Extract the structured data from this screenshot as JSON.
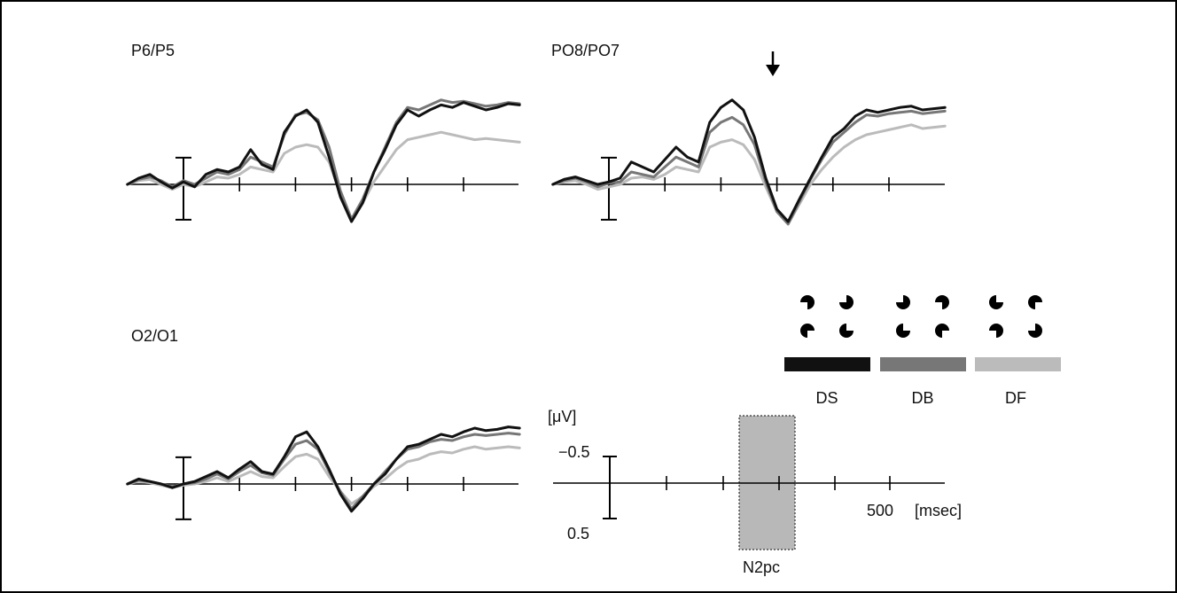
{
  "chart_data": {
    "type": "line",
    "x_unit_label": "[msec]",
    "x_tick_label": "500",
    "y_unit_label": "[μV]",
    "y_scale_labels": [
      "−0.5",
      "0.5"
    ],
    "y_inverted": true,
    "window_label": "N2pc",
    "window_range_ms": [
      200,
      300
    ],
    "x_ticks_ms": [
      0,
      100,
      200,
      300,
      400,
      500
    ],
    "series_colors": {
      "DS": "#111111",
      "DB": "#777777",
      "DF": "#bbbbbb"
    },
    "legend": [
      {
        "name": "DS",
        "color": "#111111",
        "inducer_rotations": [
          90,
          180,
          0,
          270
        ]
      },
      {
        "name": "DB",
        "color": "#777777",
        "inducer_rotations": [
          180,
          90,
          270,
          0
        ]
      },
      {
        "name": "DF",
        "color": "#bbbbbb",
        "inducer_rotations": [
          270,
          0,
          90,
          180
        ]
      }
    ],
    "panels": [
      {
        "label": "P6/P5",
        "x_ms": [
          -100,
          -80,
          -60,
          -40,
          -20,
          0,
          20,
          40,
          60,
          80,
          100,
          120,
          140,
          160,
          180,
          200,
          220,
          240,
          260,
          280,
          300,
          320,
          340,
          360,
          380,
          400,
          420,
          440,
          460,
          480,
          500,
          520,
          540,
          560,
          580,
          600
        ],
        "series": [
          {
            "name": "DS",
            "values": [
              0.0,
              0.05,
              0.08,
              0.02,
              -0.03,
              0.02,
              -0.02,
              0.08,
              0.12,
              0.1,
              0.14,
              0.28,
              0.16,
              0.12,
              0.42,
              0.55,
              0.6,
              0.5,
              0.22,
              -0.1,
              -0.3,
              -0.15,
              0.1,
              0.28,
              0.48,
              0.6,
              0.55,
              0.6,
              0.64,
              0.62,
              0.66,
              0.63,
              0.6,
              0.62,
              0.65,
              0.64
            ]
          },
          {
            "name": "DB",
            "values": [
              0.0,
              0.04,
              0.06,
              0.03,
              -0.02,
              0.03,
              0.0,
              0.05,
              0.1,
              0.08,
              0.12,
              0.22,
              0.18,
              0.14,
              0.4,
              0.56,
              0.58,
              0.52,
              0.3,
              -0.05,
              -0.28,
              -0.12,
              0.1,
              0.3,
              0.5,
              0.62,
              0.6,
              0.64,
              0.68,
              0.66,
              0.67,
              0.65,
              0.63,
              0.64,
              0.66,
              0.65
            ]
          },
          {
            "name": "DF",
            "values": [
              0.0,
              0.03,
              0.04,
              0.0,
              -0.04,
              0.0,
              -0.02,
              0.02,
              0.06,
              0.05,
              0.08,
              0.14,
              0.12,
              0.1,
              0.25,
              0.3,
              0.32,
              0.3,
              0.18,
              -0.08,
              -0.28,
              -0.15,
              0.02,
              0.15,
              0.28,
              0.36,
              0.38,
              0.4,
              0.42,
              0.4,
              0.38,
              0.36,
              0.37,
              0.36,
              0.35,
              0.34
            ]
          }
        ]
      },
      {
        "label": "PO8/PO7",
        "arrow_at_ms": 220,
        "x_ms": [
          -100,
          -80,
          -60,
          -40,
          -20,
          0,
          20,
          40,
          60,
          80,
          100,
          120,
          140,
          160,
          180,
          200,
          220,
          240,
          260,
          280,
          300,
          320,
          340,
          360,
          380,
          400,
          420,
          440,
          460,
          480,
          500,
          520,
          540,
          560,
          580,
          600
        ],
        "series": [
          {
            "name": "DS",
            "values": [
              0.0,
              0.04,
              0.06,
              0.03,
              0.0,
              0.02,
              0.05,
              0.18,
              0.14,
              0.1,
              0.2,
              0.3,
              0.22,
              0.18,
              0.5,
              0.62,
              0.68,
              0.6,
              0.38,
              0.05,
              -0.2,
              -0.3,
              -0.12,
              0.05,
              0.22,
              0.38,
              0.45,
              0.55,
              0.6,
              0.58,
              0.6,
              0.62,
              0.63,
              0.6,
              0.61,
              0.62
            ]
          },
          {
            "name": "DB",
            "values": [
              0.0,
              0.03,
              0.05,
              0.02,
              -0.02,
              0.01,
              0.02,
              0.1,
              0.08,
              0.06,
              0.14,
              0.22,
              0.18,
              0.14,
              0.42,
              0.5,
              0.54,
              0.48,
              0.32,
              0.02,
              -0.22,
              -0.32,
              -0.14,
              0.04,
              0.2,
              0.34,
              0.42,
              0.5,
              0.56,
              0.55,
              0.57,
              0.58,
              0.59,
              0.57,
              0.58,
              0.59
            ]
          },
          {
            "name": "DF",
            "values": [
              0.0,
              0.02,
              0.03,
              0.0,
              -0.04,
              -0.02,
              0.0,
              0.05,
              0.06,
              0.04,
              0.08,
              0.14,
              0.12,
              0.1,
              0.3,
              0.34,
              0.36,
              0.32,
              0.2,
              -0.02,
              -0.22,
              -0.32,
              -0.16,
              0.0,
              0.12,
              0.22,
              0.3,
              0.36,
              0.4,
              0.42,
              0.44,
              0.46,
              0.48,
              0.45,
              0.46,
              0.47
            ]
          }
        ]
      },
      {
        "label": "O2/O1",
        "x_ms": [
          -100,
          -80,
          -60,
          -40,
          -20,
          0,
          20,
          40,
          60,
          80,
          100,
          120,
          140,
          160,
          180,
          200,
          220,
          240,
          260,
          280,
          300,
          320,
          340,
          360,
          380,
          400,
          420,
          440,
          460,
          480,
          500,
          520,
          540,
          560,
          580,
          600
        ],
        "series": [
          {
            "name": "DS",
            "values": [
              0.0,
              0.04,
              0.02,
              0.0,
              -0.03,
              0.0,
              0.02,
              0.06,
              0.1,
              0.05,
              0.12,
              0.18,
              0.1,
              0.08,
              0.22,
              0.38,
              0.42,
              0.3,
              0.12,
              -0.08,
              -0.22,
              -0.12,
              0.0,
              0.08,
              0.2,
              0.3,
              0.32,
              0.36,
              0.4,
              0.38,
              0.42,
              0.45,
              0.43,
              0.44,
              0.46,
              0.45
            ]
          },
          {
            "name": "DB",
            "values": [
              0.0,
              0.03,
              0.02,
              0.0,
              -0.02,
              0.0,
              0.01,
              0.04,
              0.08,
              0.04,
              0.1,
              0.15,
              0.09,
              0.07,
              0.2,
              0.32,
              0.35,
              0.28,
              0.1,
              -0.06,
              -0.2,
              -0.1,
              0.0,
              0.1,
              0.2,
              0.28,
              0.3,
              0.34,
              0.36,
              0.35,
              0.38,
              0.4,
              0.39,
              0.4,
              0.41,
              0.4
            ]
          },
          {
            "name": "DF",
            "values": [
              0.0,
              0.02,
              0.01,
              -0.01,
              -0.03,
              -0.01,
              0.0,
              0.02,
              0.05,
              0.02,
              0.06,
              0.1,
              0.06,
              0.05,
              0.14,
              0.22,
              0.24,
              0.2,
              0.06,
              -0.06,
              -0.16,
              -0.1,
              -0.02,
              0.04,
              0.12,
              0.18,
              0.2,
              0.24,
              0.26,
              0.25,
              0.28,
              0.3,
              0.28,
              0.29,
              0.3,
              0.29
            ]
          }
        ]
      }
    ]
  }
}
